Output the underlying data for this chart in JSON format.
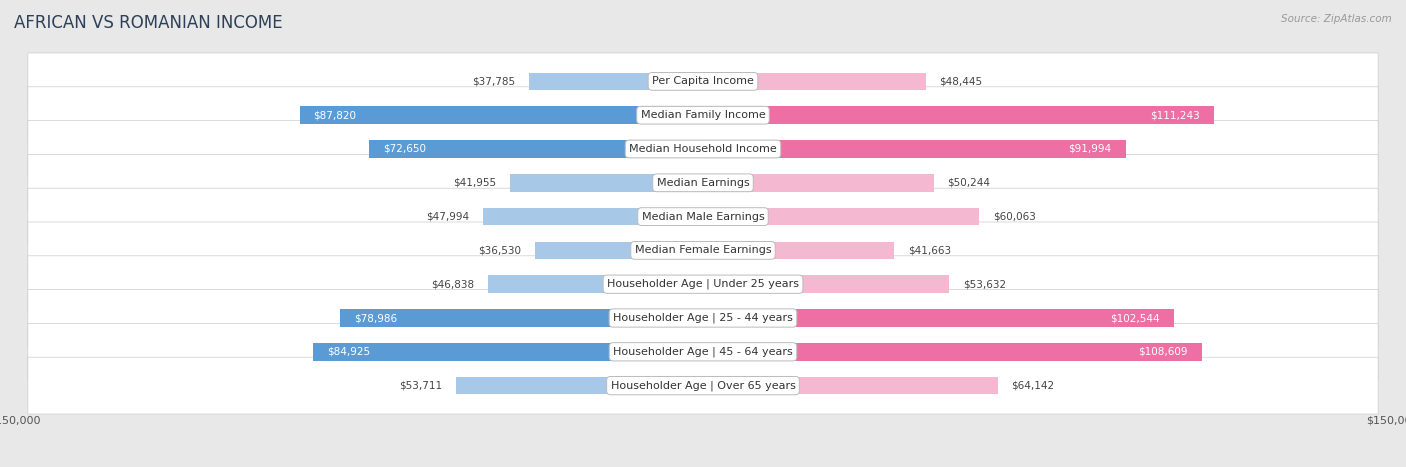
{
  "title": "AFRICAN VS ROMANIAN INCOME",
  "source": "Source: ZipAtlas.com",
  "categories": [
    "Per Capita Income",
    "Median Family Income",
    "Median Household Income",
    "Median Earnings",
    "Median Male Earnings",
    "Median Female Earnings",
    "Householder Age | Under 25 years",
    "Householder Age | 25 - 44 years",
    "Householder Age | 45 - 64 years",
    "Householder Age | Over 65 years"
  ],
  "african_values": [
    37785,
    87820,
    72650,
    41955,
    47994,
    36530,
    46838,
    78986,
    84925,
    53711
  ],
  "romanian_values": [
    48445,
    111243,
    91994,
    50244,
    60063,
    41663,
    53632,
    102544,
    108609,
    64142
  ],
  "african_labels": [
    "$37,785",
    "$87,820",
    "$72,650",
    "$41,955",
    "$47,994",
    "$36,530",
    "$46,838",
    "$78,986",
    "$84,925",
    "$53,711"
  ],
  "romanian_labels": [
    "$48,445",
    "$111,243",
    "$91,994",
    "$50,244",
    "$60,063",
    "$41,663",
    "$53,632",
    "$102,544",
    "$108,609",
    "$64,142"
  ],
  "african_color_light": "#a8c8e8",
  "african_color_dark": "#5b9bd5",
  "romanian_color_light": "#f4b8d0",
  "romanian_color_dark": "#ed6fa3",
  "max_value": 150000,
  "background_color": "#e8e8e8",
  "row_bg_color": "#f5f5f5",
  "title_fontsize": 12,
  "label_fontsize": 8,
  "value_fontsize": 7.5,
  "legend_fontsize": 9,
  "title_color": "#2e4057"
}
